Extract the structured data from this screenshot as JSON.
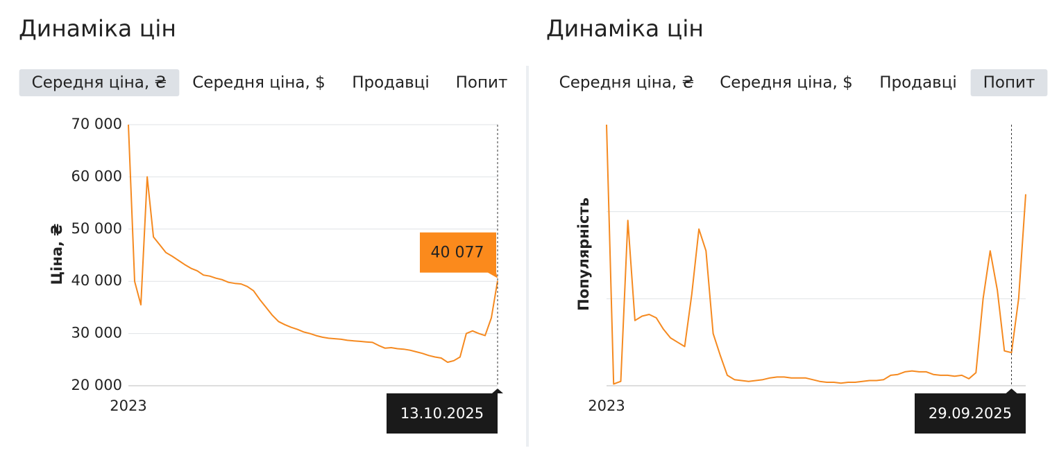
{
  "chart_data": [
    {
      "type": "line",
      "title": "Динаміка цін",
      "tabs": [
        "Середня ціна, ₴",
        "Середня ціна, $",
        "Продавці",
        "Попит"
      ],
      "active_tab": 0,
      "y_label": "Ціна, ₴",
      "color": "#f5891f",
      "grid": true,
      "ylim": [
        20000,
        70000
      ],
      "yticks": [
        {
          "value": 20000,
          "label": "20 000"
        },
        {
          "value": 30000,
          "label": "30 000"
        },
        {
          "value": 40000,
          "label": "40 000"
        },
        {
          "value": 50000,
          "label": "50 000"
        },
        {
          "value": 60000,
          "label": "60 000"
        },
        {
          "value": 70000,
          "label": "70 000"
        }
      ],
      "xticks": [
        {
          "value": 0,
          "label": "2023"
        }
      ],
      "values": [
        70000,
        40000,
        35500,
        60000,
        48500,
        47000,
        45500,
        44800,
        44000,
        43200,
        42500,
        42000,
        41200,
        41000,
        40600,
        40300,
        39800,
        39600,
        39500,
        39000,
        38200,
        36500,
        35000,
        33500,
        32300,
        31700,
        31200,
        30800,
        30300,
        30000,
        29600,
        29300,
        29100,
        29000,
        28900,
        28700,
        28600,
        28500,
        28400,
        28300,
        27700,
        27200,
        27300,
        27100,
        27000,
        26800,
        26500,
        26200,
        25800,
        25500,
        25300,
        24500,
        24800,
        25500,
        30000,
        30500,
        30000,
        29600,
        33000,
        40077
      ],
      "tooltip": {
        "index": 59,
        "date": "13.10.2025",
        "value_label": "40 077"
      }
    },
    {
      "type": "line",
      "title": "Динаміка цін",
      "tabs": [
        "Середня ціна, ₴",
        "Середня ціна, $",
        "Продавці",
        "Попит"
      ],
      "active_tab": 3,
      "y_label": "Популярність",
      "color": "#f5891f",
      "grid": true,
      "ylim": [
        0,
        3
      ],
      "yticks": [
        0,
        1,
        2
      ],
      "xticks": [
        {
          "value": 0,
          "label": "2023"
        }
      ],
      "values": [
        3.0,
        0.02,
        0.05,
        1.9,
        0.75,
        0.8,
        0.82,
        0.78,
        0.65,
        0.55,
        0.5,
        0.45,
        1.05,
        1.8,
        1.55,
        0.6,
        0.35,
        0.12,
        0.07,
        0.06,
        0.05,
        0.06,
        0.07,
        0.09,
        0.1,
        0.1,
        0.09,
        0.09,
        0.09,
        0.07,
        0.05,
        0.04,
        0.04,
        0.03,
        0.04,
        0.04,
        0.05,
        0.06,
        0.06,
        0.07,
        0.12,
        0.13,
        0.16,
        0.17,
        0.16,
        0.16,
        0.13,
        0.12,
        0.12,
        0.11,
        0.12,
        0.08,
        0.15,
        1.0,
        1.55,
        1.1,
        0.4,
        0.38,
        1.0,
        2.2
      ],
      "tooltip": {
        "index": 57,
        "date": "29.09.2025"
      }
    }
  ]
}
